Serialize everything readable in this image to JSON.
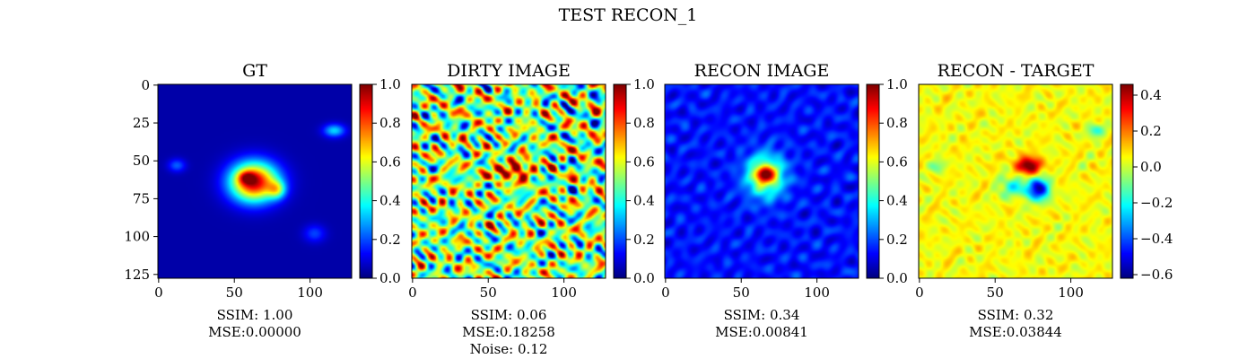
{
  "figure": {
    "suptitle": "TEST RECON_1"
  },
  "chart_data": [
    {
      "type": "heatmap",
      "title": "GT",
      "colormap": "jet",
      "image_size": [
        128,
        128
      ],
      "x_ticks": [
        0,
        50,
        100
      ],
      "y_ticks": [
        0,
        25,
        50,
        75,
        100,
        125
      ],
      "colorbar": {
        "range": [
          0.0,
          1.0
        ],
        "ticks": [
          "0.0",
          "0.2",
          "0.4",
          "0.6",
          "0.8",
          "1.0"
        ]
      },
      "caption": [
        "SSIM: 1.00",
        "MSE:0.00000"
      ],
      "blobs": [
        {
          "cx": 63,
          "cy": 64,
          "sx": 11,
          "sy": 9,
          "amp": 0.9
        },
        {
          "cx": 78,
          "cy": 69,
          "sx": 4,
          "sy": 4,
          "amp": 0.35
        },
        {
          "cx": 58,
          "cy": 61,
          "sx": 4,
          "sy": 3,
          "amp": 0.3
        },
        {
          "cx": 116,
          "cy": 30,
          "sx": 5,
          "sy": 3,
          "amp": 0.3
        },
        {
          "cx": 12,
          "cy": 53,
          "sx": 4,
          "sy": 3,
          "amp": 0.18
        },
        {
          "cx": 103,
          "cy": 98,
          "sx": 5,
          "sy": 4,
          "amp": 0.15
        }
      ],
      "base": 0.04
    },
    {
      "type": "heatmap",
      "title": "DIRTY IMAGE",
      "colormap": "jet",
      "image_size": [
        128,
        128
      ],
      "x_ticks": [
        0,
        50,
        100
      ],
      "colorbar": {
        "range": [
          0.0,
          1.0
        ],
        "ticks": [
          "0.0",
          "0.2",
          "0.4",
          "0.6",
          "0.8",
          "1.0"
        ]
      },
      "caption": [
        "SSIM: 0.06",
        "MSE:0.18258",
        "Noise: 0.12"
      ],
      "blobs": [
        {
          "cx": 63,
          "cy": 57,
          "sx": 9,
          "sy": 4,
          "amp": 0.35
        },
        {
          "cx": 72,
          "cy": 55,
          "sx": 4,
          "sy": 4,
          "amp": 0.25
        }
      ],
      "base": 0.52,
      "noise_amp": 0.38
    },
    {
      "type": "heatmap",
      "title": "RECON IMAGE",
      "colormap": "jet",
      "image_size": [
        128,
        128
      ],
      "x_ticks": [
        0,
        50,
        100
      ],
      "colorbar": {
        "range": [
          0.0,
          1.0
        ],
        "ticks": [
          "0.0",
          "0.2",
          "0.4",
          "0.6",
          "0.8",
          "1.0"
        ]
      },
      "caption": [
        "SSIM: 0.34",
        "MSE:0.00841"
      ],
      "blobs": [
        {
          "cx": 66,
          "cy": 60,
          "sx": 9,
          "sy": 10,
          "amp": 0.45
        },
        {
          "cx": 66,
          "cy": 59,
          "sx": 5,
          "sy": 4,
          "amp": 0.45
        }
      ],
      "base": 0.14,
      "noise_amp": 0.06
    },
    {
      "type": "heatmap",
      "title": "RECON - TARGET",
      "colormap": "jet",
      "image_size": [
        128,
        128
      ],
      "x_ticks": [
        0,
        50,
        100
      ],
      "colorbar": {
        "range": [
          -0.62,
          0.46
        ],
        "ticks": [
          "0.4",
          "0.2",
          "0.0",
          "−0.2",
          "−0.4",
          "−0.6"
        ],
        "tick_values": [
          0.4,
          0.2,
          0.0,
          -0.2,
          -0.4,
          -0.6
        ]
      },
      "caption": [
        "SSIM: 0.32",
        "MSE:0.03844"
      ],
      "blobs": [
        {
          "cx": 72,
          "cy": 53,
          "sx": 6,
          "sy": 4,
          "amp": 0.45
        },
        {
          "cx": 79,
          "cy": 69,
          "sx": 5,
          "sy": 5,
          "amp": -0.6
        },
        {
          "cx": 63,
          "cy": 67,
          "sx": 7,
          "sy": 5,
          "amp": -0.25
        },
        {
          "cx": 116,
          "cy": 30,
          "sx": 4,
          "sy": 3,
          "amp": -0.22
        },
        {
          "cx": 12,
          "cy": 53,
          "sx": 4,
          "sy": 3,
          "amp": -0.14
        }
      ],
      "base": 0.05,
      "noise_amp": 0.06
    }
  ]
}
